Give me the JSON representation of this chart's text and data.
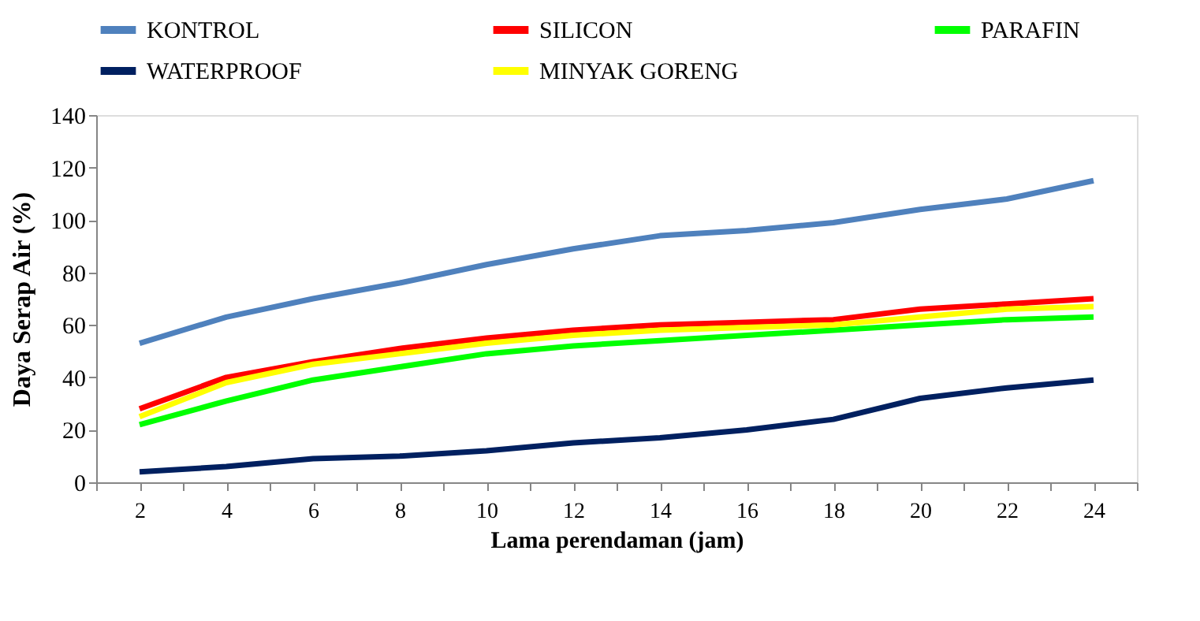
{
  "chart_data": {
    "type": "line",
    "xlabel": "Lama perendaman (jam)",
    "ylabel": "Daya Serap Air (%)",
    "x": [
      2,
      4,
      6,
      8,
      10,
      12,
      14,
      16,
      18,
      20,
      22,
      24
    ],
    "series": [
      {
        "name": "KONTROL",
        "color": "#4f81bd",
        "values": [
          53,
          63,
          70,
          76,
          83,
          89,
          94,
          96,
          99,
          104,
          108,
          115
        ]
      },
      {
        "name": "SILICON",
        "color": "#ff0000",
        "values": [
          28,
          40,
          46,
          51,
          55,
          58,
          60,
          61,
          62,
          66,
          68,
          70
        ]
      },
      {
        "name": "PARAFIN",
        "color": "#00ff00",
        "values": [
          22,
          31,
          39,
          44,
          49,
          52,
          54,
          56,
          58,
          60,
          62,
          63
        ]
      },
      {
        "name": "WATERPROOF",
        "color": "#002060",
        "values": [
          4,
          6,
          9,
          10,
          12,
          15,
          17,
          20,
          24,
          32,
          36,
          39
        ]
      },
      {
        "name": "MINYAK  GORENG",
        "color": "#ffff00",
        "values": [
          25,
          38,
          45,
          49,
          53,
          56,
          58,
          59,
          60,
          63,
          66,
          67
        ]
      }
    ],
    "xlim": [
      1,
      25
    ],
    "xticks": [
      {
        "value": 1,
        "label": null
      },
      2,
      {
        "value": 3,
        "label": null
      },
      4,
      {
        "value": 5,
        "label": null
      },
      6,
      {
        "value": 7,
        "label": null
      },
      8,
      {
        "value": 9,
        "label": null
      },
      10,
      {
        "value": 11,
        "label": null
      },
      12,
      {
        "value": 13,
        "label": null
      },
      14,
      {
        "value": 15,
        "label": null
      },
      16,
      {
        "value": 17,
        "label": null
      },
      18,
      {
        "value": 19,
        "label": null
      },
      20,
      {
        "value": 21,
        "label": null
      },
      22,
      {
        "value": 23,
        "label": null
      },
      24,
      {
        "value": 25,
        "label": null
      }
    ],
    "ylim": [
      0,
      140
    ],
    "yticks": [
      0,
      20,
      40,
      60,
      80,
      100,
      120,
      140
    ],
    "grid": false,
    "legend": "top",
    "marker": "none",
    "line_style": "solid"
  }
}
